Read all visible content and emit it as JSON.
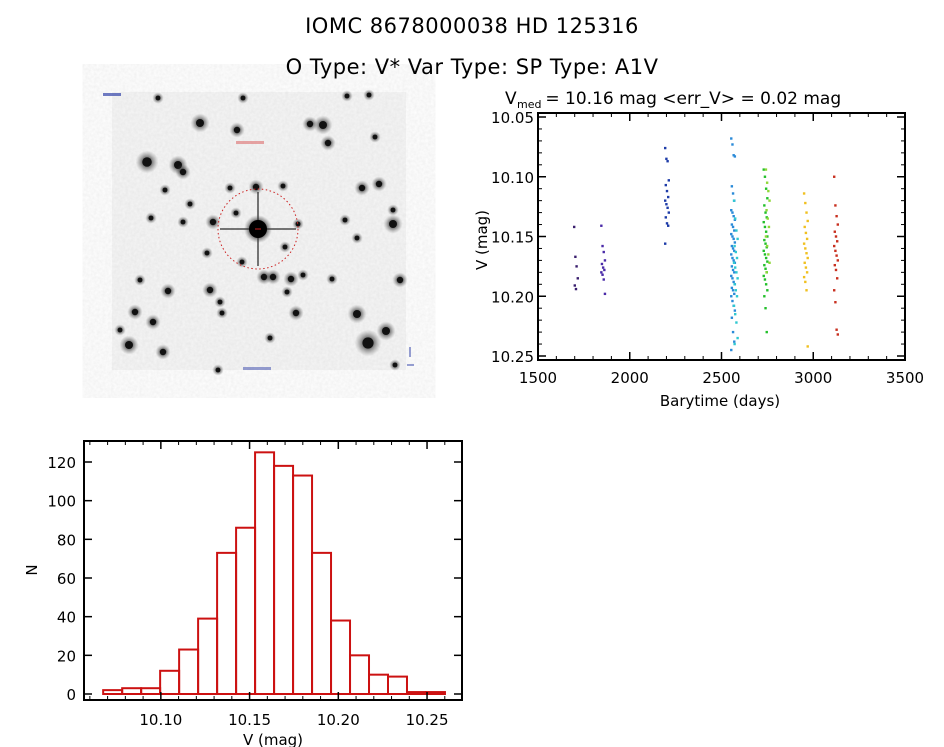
{
  "header": {
    "line1": "IOMC 8678000038    HD 125316",
    "line2": "O Type: V*   Var Type:    SP Type: A1V"
  },
  "finding_chart": {
    "description": "star field finding chart with target circled",
    "target_marker_color": "#cc2222"
  },
  "chart_data": [
    {
      "type": "scatter",
      "name": "light-curve",
      "title_prefix": "V",
      "title_subscript": "med",
      "title_rest": " = 10.16 mag <err_V> = 0.02 mag",
      "xlabel": "Barytime (days)",
      "ylabel": "V (mag)",
      "xlim": [
        1500,
        3500
      ],
      "ylim": [
        10.25,
        10.05
      ],
      "y_inverted": true,
      "xticks": [
        1500,
        2000,
        2500,
        3000,
        3500
      ],
      "yticks": [
        "10.05",
        "10.10",
        "10.15",
        "10.20",
        "10.25"
      ],
      "grid": false,
      "color_scheme": "rainbow by time",
      "seasons": [
        {
          "t": 1707,
          "color": "#3a1f6e",
          "V": [
            10.142,
            10.167,
            10.175,
            10.185,
            10.191,
            10.194
          ]
        },
        {
          "t": 1855,
          "color": "#4a2aa8",
          "V": [
            10.141,
            10.158,
            10.163,
            10.17,
            10.173,
            10.176,
            10.178,
            10.18,
            10.182,
            10.186,
            10.198
          ]
        },
        {
          "t": 2203,
          "color": "#1e3ca8",
          "V": [
            10.076,
            10.085,
            10.087,
            10.103,
            10.107,
            10.112,
            10.117,
            10.12,
            10.123,
            10.126,
            10.13,
            10.134,
            10.139,
            10.141,
            10.156
          ]
        },
        {
          "t": 2563,
          "color": "#2a8ad8",
          "V": [
            10.068,
            10.073,
            10.082,
            10.083,
            10.108,
            10.114,
            10.12,
            10.128,
            10.13,
            10.133,
            10.136,
            10.14,
            10.142,
            10.145,
            10.148,
            10.15,
            10.152,
            10.155,
            10.158,
            10.16,
            10.162,
            10.165,
            10.168,
            10.17,
            10.172,
            10.175,
            10.178,
            10.18,
            10.183,
            10.185,
            10.188,
            10.19,
            10.193,
            10.195,
            10.198,
            10.2,
            10.204,
            10.208,
            10.212,
            10.218,
            10.23,
            10.238,
            10.245
          ]
        },
        {
          "t": 2578,
          "color": "#30c8d0",
          "V": [
            10.12,
            10.135,
            10.145,
            10.152,
            10.158,
            10.163,
            10.168,
            10.172,
            10.176,
            10.18,
            10.185,
            10.19,
            10.195,
            10.2,
            10.208,
            10.215,
            10.222,
            10.235,
            10.24
          ]
        },
        {
          "t": 2740,
          "color": "#22c02a",
          "V": [
            10.094,
            10.1,
            10.11,
            10.118,
            10.124,
            10.13,
            10.134,
            10.138,
            10.142,
            10.146,
            10.15,
            10.153,
            10.156,
            10.159,
            10.162,
            10.165,
            10.168,
            10.171,
            10.174,
            10.177,
            10.18,
            10.183,
            10.186,
            10.19,
            10.195,
            10.2,
            10.21,
            10.23
          ]
        },
        {
          "t": 2752,
          "color": "#8fd838",
          "V": [
            10.094,
            10.105,
            10.112,
            10.12,
            10.128,
            10.135,
            10.142,
            10.15,
            10.158,
            10.165,
            10.172,
            10.18
          ]
        },
        {
          "t": 2960,
          "color": "#f0c020",
          "V": [
            10.114,
            10.122,
            10.13,
            10.137,
            10.142,
            10.147,
            10.152,
            10.156,
            10.16,
            10.164,
            10.168,
            10.172,
            10.176,
            10.18,
            10.184,
            10.188,
            10.195,
            10.242
          ]
        },
        {
          "t": 3124,
          "color": "#c83020",
          "V": [
            10.1,
            10.124,
            10.133,
            10.14,
            10.146,
            10.15,
            10.154,
            10.158,
            10.162,
            10.166,
            10.17,
            10.174,
            10.178,
            10.185,
            10.195,
            10.205,
            10.228,
            10.232
          ]
        }
      ]
    },
    {
      "type": "bar",
      "name": "histogram",
      "title": "",
      "xlabel": "V (mag)",
      "ylabel": "N",
      "xlim": [
        10.0567,
        10.2697
      ],
      "ylim": [
        -4,
        130
      ],
      "xticks": [
        "10.10",
        "10.15",
        "10.20",
        "10.25"
      ],
      "yticks": [
        0,
        20,
        40,
        60,
        80,
        100,
        120
      ],
      "bar_color": "#cc1111",
      "bin_start": 10.0675,
      "bin_width": 0.0107,
      "values": [
        2,
        3,
        3,
        12,
        23,
        39,
        73,
        86,
        125,
        118,
        113,
        73,
        38,
        20,
        10,
        9,
        1,
        1
      ]
    }
  ]
}
